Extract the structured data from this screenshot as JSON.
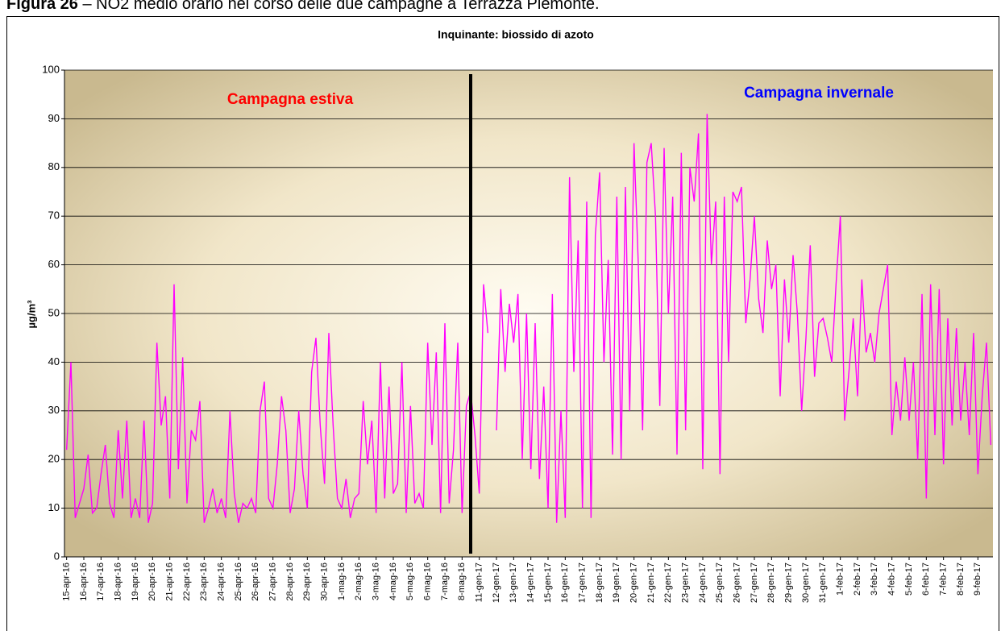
{
  "caption": {
    "label": "Figura 26",
    "text": "– NO2 medio orario nel corso delle due campagne a Terrazza Piemonte."
  },
  "chart_data": {
    "type": "line",
    "title": "Inquinante: biossido di azoto",
    "y_label": "µg/m³",
    "categories": [
      "15-apr-16",
      null,
      null,
      null,
      "16-apr-16",
      null,
      null,
      null,
      "17-apr-16",
      null,
      null,
      null,
      "18-apr-16",
      null,
      null,
      null,
      "19-apr-16",
      null,
      null,
      null,
      "20-apr-16",
      null,
      null,
      null,
      "21-apr-16",
      null,
      null,
      null,
      "22-apr-16",
      null,
      null,
      null,
      "23-apr-16",
      null,
      null,
      null,
      "24-apr-16",
      null,
      null,
      null,
      "25-apr-16",
      null,
      null,
      null,
      "26-apr-16",
      null,
      null,
      null,
      "27-apr-16",
      null,
      null,
      null,
      "28-apr-16",
      null,
      null,
      null,
      "29-apr-16",
      null,
      null,
      null,
      "30-apr-16",
      null,
      null,
      null,
      "1-mag-16",
      null,
      null,
      null,
      "2-mag-16",
      null,
      null,
      null,
      "3-mag-16",
      null,
      null,
      null,
      "4-mag-16",
      null,
      null,
      null,
      "5-mag-16",
      null,
      null,
      null,
      "6-mag-16",
      null,
      null,
      null,
      "7-mag-16",
      null,
      null,
      null,
      "8-mag-16",
      null,
      null,
      null,
      "11-gen-17",
      null,
      null,
      null,
      "12-gen-17",
      null,
      null,
      null,
      "13-gen-17",
      null,
      null,
      null,
      "14-gen-17",
      null,
      null,
      null,
      "15-gen-17",
      null,
      null,
      null,
      "16-gen-17",
      null,
      null,
      null,
      "17-gen-17",
      null,
      null,
      null,
      "18-gen-17",
      null,
      null,
      null,
      "19-gen-17",
      null,
      null,
      null,
      "20-gen-17",
      null,
      null,
      null,
      "21-gen-17",
      null,
      null,
      null,
      "22-gen-17",
      null,
      null,
      null,
      "23-gen-17",
      null,
      null,
      null,
      "24-gen-17",
      null,
      null,
      null,
      "25-gen-17",
      null,
      null,
      null,
      "26-gen-17",
      null,
      null,
      null,
      "27-gen-17",
      null,
      null,
      null,
      "28-gen-17",
      null,
      null,
      null,
      "29-gen-17",
      null,
      null,
      null,
      "30-gen-17",
      null,
      null,
      null,
      "31-gen-17",
      null,
      null,
      null,
      "1-feb-17",
      null,
      null,
      null,
      "2-feb-17",
      null,
      null,
      null,
      "3-feb-17",
      null,
      null,
      null,
      "4-feb-17",
      null,
      null,
      null,
      "5-feb-17",
      null,
      null,
      null,
      "6-feb-17",
      null,
      null,
      null,
      "7-feb-17",
      null,
      null,
      null,
      "8-feb-17",
      null,
      null,
      null,
      "9-feb-17",
      null,
      null,
      null
    ],
    "values": [
      22,
      40,
      8,
      11,
      14,
      21,
      9,
      10,
      17,
      23,
      11,
      8,
      26,
      12,
      28,
      8,
      12,
      8,
      28,
      7,
      11,
      44,
      27,
      33,
      12,
      56,
      18,
      41,
      11,
      26,
      24,
      32,
      7,
      10,
      14,
      9,
      12,
      8,
      30,
      13,
      7,
      11,
      10,
      12,
      9,
      30,
      36,
      12,
      10,
      19,
      33,
      26,
      9,
      14,
      30,
      17,
      10,
      38,
      45,
      27,
      15,
      46,
      27,
      12,
      10,
      16,
      8,
      12,
      13,
      32,
      19,
      28,
      9,
      40,
      12,
      35,
      13,
      15,
      40,
      9,
      31,
      11,
      13,
      10,
      44,
      23,
      42,
      9,
      48,
      11,
      22,
      44,
      9,
      31,
      34,
      25,
      13,
      56,
      46,
      null,
      26,
      55,
      38,
      52,
      44,
      54,
      20,
      50,
      18,
      48,
      16,
      35,
      10,
      54,
      7,
      30,
      8,
      78,
      38,
      65,
      10,
      73,
      8,
      66,
      79,
      40,
      61,
      21,
      74,
      20,
      76,
      30,
      85,
      60,
      26,
      81,
      85,
      70,
      31,
      84,
      50,
      74,
      21,
      83,
      26,
      80,
      73,
      87,
      18,
      91,
      60,
      73,
      17,
      74,
      40,
      75,
      73,
      76,
      48,
      57,
      70,
      53,
      46,
      65,
      55,
      60,
      33,
      57,
      44,
      62,
      50,
      30,
      45,
      64,
      37,
      48,
      49,
      45,
      40,
      56,
      70,
      28,
      38,
      49,
      33,
      57,
      42,
      46,
      40,
      50,
      55,
      60,
      25,
      36,
      28,
      41,
      28,
      40,
      20,
      54,
      12,
      56,
      25,
      55,
      19,
      49,
      27,
      47,
      28,
      40,
      25,
      46,
      17,
      33,
      44,
      23
    ],
    "color": "#ff00ff",
    "ylim": [
      0,
      100
    ],
    "yticks": [
      0,
      10,
      20,
      30,
      40,
      50,
      60,
      70,
      80,
      90,
      100
    ],
    "grid": true,
    "annotations": [
      {
        "text": "Campagna estiva",
        "color": "#ff0000"
      },
      {
        "text": "Campagna invernale",
        "color": "#0000ff"
      }
    ]
  }
}
